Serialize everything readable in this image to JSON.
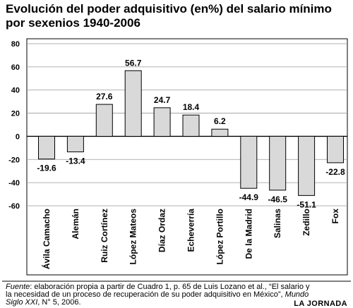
{
  "chart_data": {
    "type": "bar",
    "title": "Evolución del poder adquisitivo (en%) del salario mínimo por sexenios 1940-2006",
    "xlabel": "",
    "ylabel": "",
    "ylim": [
      -60,
      80
    ],
    "yticks": [
      -60,
      -40,
      -20,
      0,
      20,
      40,
      60,
      80
    ],
    "grid": true,
    "categories": [
      "Ávila Camacho",
      "Alemán",
      "Ruiz Cortínez",
      "López Mateos",
      "Díaz Ordaz",
      "Echeverría",
      "López Portillo",
      "De la Madrid",
      "Salinas",
      "Zedillo",
      "Fox"
    ],
    "values": [
      -19.6,
      -13.4,
      27.6,
      56.7,
      24.7,
      18.4,
      6.2,
      -44.9,
      -46.5,
      -51.1,
      -22.8
    ],
    "value_labels": [
      "-19.6",
      "-13.4",
      "27.6",
      "56.7",
      "24.7",
      "18.4",
      "6.2",
      "-44.9",
      "-46.5",
      "-51.1",
      "-22.8"
    ],
    "bar_color": "#d9d9d9"
  },
  "footer": {
    "source_label": "Fuente",
    "source_text": ": elaboración propia a partir de Cuadro 1, p. 65 de Luis Lozano et al., “El salario y la necesidad de un proceso de recuperación de su poder adquisitivo en México”,",
    "publication": "Mundo Siglo XXI",
    "publication_rest": ", N° 5, 2006."
  },
  "brand": "LA JORNADA"
}
